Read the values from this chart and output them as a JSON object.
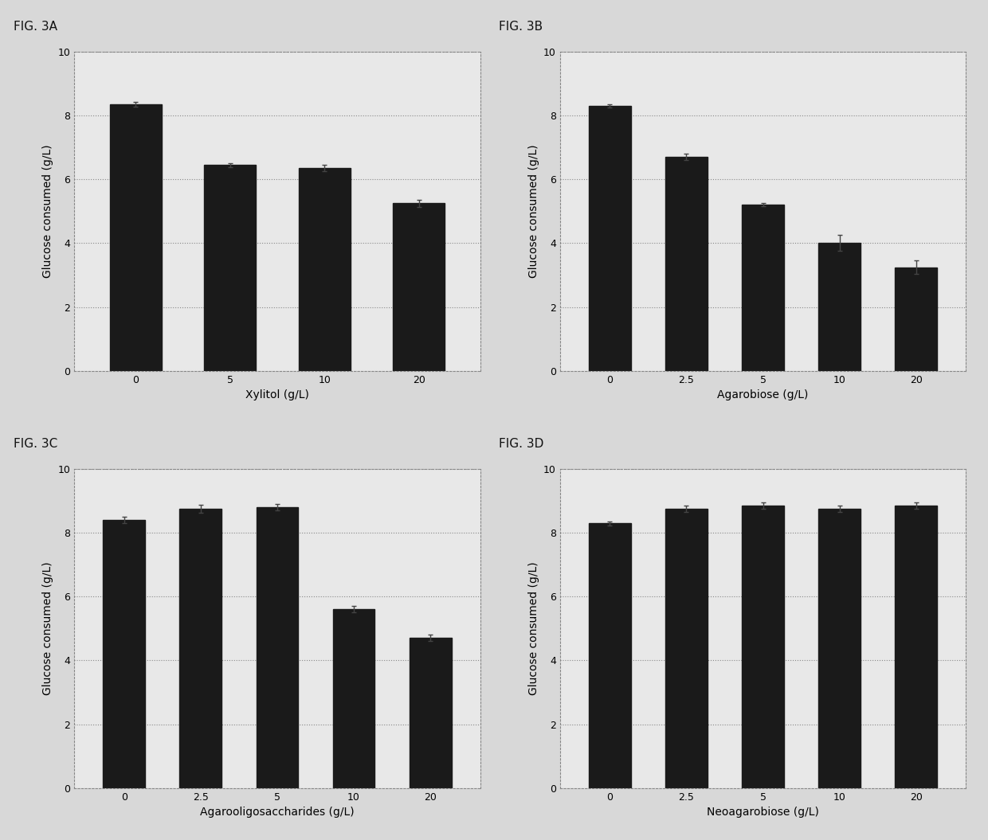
{
  "panels": [
    {
      "label": "FIG. 3A",
      "xlabel": "Xylitol (g/L)",
      "ylabel": "Glucose consumed (g/L)",
      "categories": [
        "0",
        "5",
        "10",
        "20"
      ],
      "values": [
        8.35,
        6.45,
        6.35,
        5.25
      ],
      "errors": [
        0.08,
        0.06,
        0.1,
        0.12
      ]
    },
    {
      "label": "FIG. 3B",
      "xlabel": "Agarobiose (g/L)",
      "ylabel": "Glucose consumed (g/L)",
      "categories": [
        "0",
        "2.5",
        "5",
        "10",
        "20"
      ],
      "values": [
        8.3,
        6.7,
        5.2,
        4.0,
        3.25
      ],
      "errors": [
        0.06,
        0.1,
        0.05,
        0.25,
        0.2
      ]
    },
    {
      "label": "FIG. 3C",
      "xlabel": "Agarooligosaccharides (g/L)",
      "ylabel": "Glucose consumed (g/L)",
      "categories": [
        "0",
        "2.5",
        "5",
        "10",
        "20"
      ],
      "values": [
        8.4,
        8.75,
        8.8,
        5.6,
        4.7
      ],
      "errors": [
        0.1,
        0.12,
        0.1,
        0.1,
        0.1
      ]
    },
    {
      "label": "FIG. 3D",
      "xlabel": "Neoagarobiose (g/L)",
      "ylabel": "Glucose consumed (g/L)",
      "categories": [
        "0",
        "2.5",
        "5",
        "10",
        "20"
      ],
      "values": [
        8.3,
        8.75,
        8.85,
        8.75,
        8.85
      ],
      "errors": [
        0.06,
        0.1,
        0.1,
        0.1,
        0.1
      ]
    }
  ],
  "bar_color": "#1a1a1a",
  "bar_edge_color": "#1a1a1a",
  "background_color": "#d8d8d8",
  "plot_bg_color": "#e8e8e8",
  "grid_color": "#888888",
  "spine_color": "#888888",
  "ylim": [
    0,
    10
  ],
  "yticks": [
    0,
    2,
    4,
    6,
    8,
    10
  ],
  "bar_width": 0.55,
  "label_fontsize": 10,
  "tick_fontsize": 9,
  "fig_label_fontsize": 11
}
